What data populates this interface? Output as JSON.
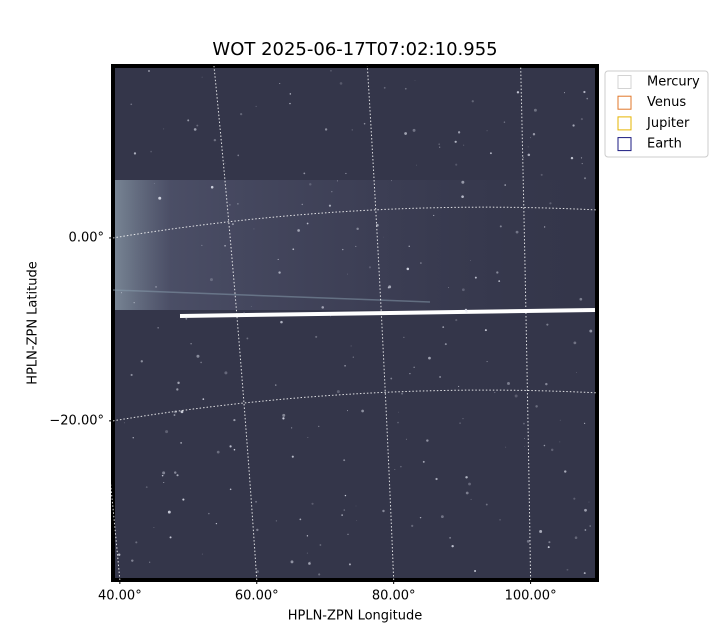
{
  "chart_data": {
    "type": "image",
    "title": "WOT 2025-06-17T07:02:10.955",
    "x_label": "HPLN-ZPN Longitude",
    "y_label": "HPLN-ZPN Latitude",
    "xlim": [
      39,
      109.7
    ],
    "ylim": [
      -37.4,
      18.8
    ],
    "xticks": [
      {
        "value": 40,
        "label": "40.00°"
      },
      {
        "value": 60,
        "label": "60.00°"
      },
      {
        "value": 80,
        "label": "80.00°"
      },
      {
        "value": 100,
        "label": "100.00°"
      }
    ],
    "yticks": [
      {
        "value": 0,
        "label": "0.00°"
      },
      {
        "value": -20,
        "label": "−20.00°"
      }
    ],
    "grid": true,
    "legend_position": "outside-upper-right",
    "series": [
      {
        "name": "Mercury",
        "color": "#d3d3d3"
      },
      {
        "name": "Venus",
        "color": "#e0772a"
      },
      {
        "name": "Jupiter",
        "color": "#e6b400"
      },
      {
        "name": "Earth",
        "color": "#1a1a80"
      }
    ]
  }
}
